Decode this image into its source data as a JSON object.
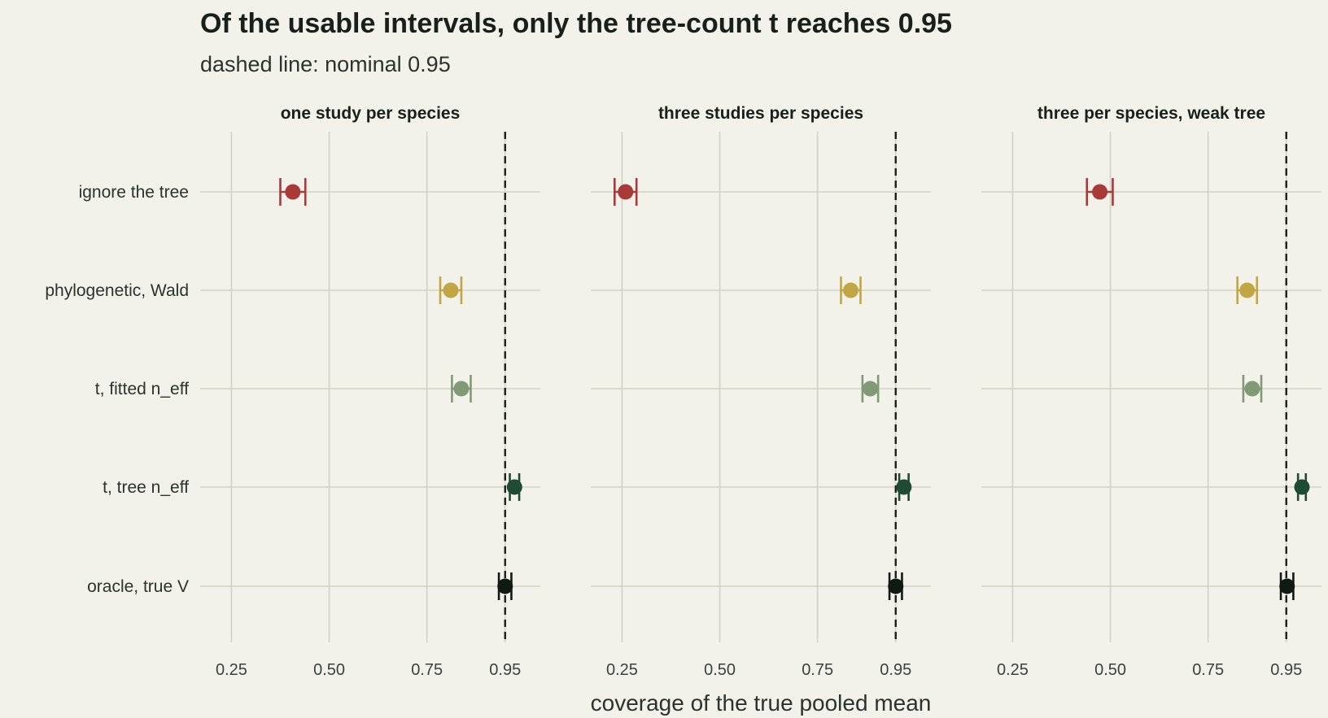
{
  "title": "Of the usable intervals, only the tree-count t reaches 0.95",
  "subtitle": "dashed line: nominal 0.95",
  "chart_data": {
    "type": "scatter",
    "subtype": "dot-and-errorbar, faceted",
    "xlabel": "coverage of the true pooled mean",
    "ylabel": "",
    "xlim": [
      0.17,
      1.04
    ],
    "xticks": [
      0.25,
      0.5,
      0.75,
      0.95
    ],
    "xtick_labels": [
      "0.25",
      "0.50",
      "0.75",
      "0.95"
    ],
    "reference_line": {
      "x": 0.95,
      "style": "dashed"
    },
    "grid": true,
    "legend": "none",
    "methods": [
      "ignore the tree",
      "phylogenetic, Wald",
      "t, fitted n_eff",
      "t, tree n_eff",
      "oracle, true V"
    ],
    "colors": {
      "ignore the tree": "#a83a3a",
      "phylogenetic, Wald": "#c2a645",
      "t, fitted n_eff": "#7f9a74",
      "t, tree n_eff": "#1f4a34",
      "oracle, true V": "#0f1a14"
    },
    "facets": [
      {
        "title": "one study per species",
        "points": [
          {
            "method": "ignore the tree",
            "coverage": 0.407,
            "lo": 0.375,
            "hi": 0.439
          },
          {
            "method": "phylogenetic, Wald",
            "coverage": 0.811,
            "lo": 0.784,
            "hi": 0.838
          },
          {
            "method": "t, fitted n_eff",
            "coverage": 0.838,
            "lo": 0.814,
            "hi": 0.862
          },
          {
            "method": "t, tree n_eff",
            "coverage": 0.974,
            "lo": 0.962,
            "hi": 0.986
          },
          {
            "method": "oracle, true V",
            "coverage": 0.95,
            "lo": 0.934,
            "hi": 0.966
          }
        ]
      },
      {
        "title": "three studies per species",
        "points": [
          {
            "method": "ignore the tree",
            "coverage": 0.259,
            "lo": 0.231,
            "hi": 0.287
          },
          {
            "method": "phylogenetic, Wald",
            "coverage": 0.835,
            "lo": 0.81,
            "hi": 0.86
          },
          {
            "method": "t, fitted n_eff",
            "coverage": 0.885,
            "lo": 0.865,
            "hi": 0.905
          },
          {
            "method": "t, tree n_eff",
            "coverage": 0.971,
            "lo": 0.959,
            "hi": 0.983
          },
          {
            "method": "oracle, true V",
            "coverage": 0.95,
            "lo": 0.934,
            "hi": 0.966
          }
        ]
      },
      {
        "title": "three per species, weak tree",
        "points": [
          {
            "method": "ignore the tree",
            "coverage": 0.473,
            "lo": 0.44,
            "hi": 0.506
          },
          {
            "method": "phylogenetic, Wald",
            "coverage": 0.85,
            "lo": 0.825,
            "hi": 0.875
          },
          {
            "method": "t, fitted n_eff",
            "coverage": 0.863,
            "lo": 0.84,
            "hi": 0.886
          },
          {
            "method": "t, tree n_eff",
            "coverage": 0.99,
            "lo": 0.98,
            "hi": 1.0
          },
          {
            "method": "oracle, true V",
            "coverage": 0.952,
            "lo": 0.936,
            "hi": 0.968
          }
        ]
      }
    ]
  }
}
